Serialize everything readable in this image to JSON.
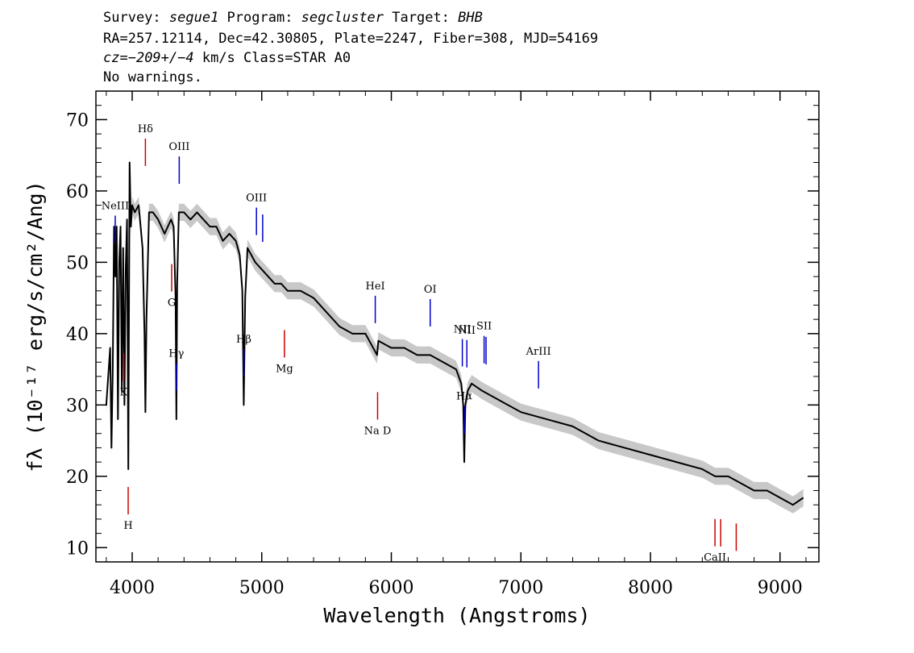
{
  "header": {
    "survey_label": "Survey: ",
    "survey": "segue1",
    "program_label": " Program: ",
    "program": "segcluster",
    "target_label": " Target: ",
    "target": "BHB",
    "line2": "RA=257.12114, Dec=42.30805, Plate=2247, Fiber=308, MJD=54169",
    "cz_prefix": "cz=",
    "cz_value": "−209+/−4",
    "cz_suffix": " km/s Class=STAR A0",
    "line4": "No warnings."
  },
  "chart_data": {
    "type": "line",
    "xlabel": "Wavelength (Angstroms)",
    "ylabel": "fλ (10⁻¹⁷ erg/s/cm²/Ang)",
    "xlim": [
      3720,
      9300
    ],
    "ylim": [
      8,
      74
    ],
    "x_ticks": [
      4000,
      5000,
      6000,
      7000,
      8000,
      9000
    ],
    "x_tick_labels": [
      "4000",
      "5000",
      "6000",
      "7000",
      "8000",
      "9000"
    ],
    "y_ticks": [
      10,
      20,
      30,
      40,
      50,
      60,
      70
    ],
    "y_tick_labels": [
      "10",
      "20",
      "30",
      "40",
      "50",
      "60",
      "70"
    ],
    "series": [
      {
        "color": "#000000",
        "x": [
          3800,
          3830,
          3840,
          3850,
          3860,
          3870,
          3880,
          3890,
          3900,
          3910,
          3920,
          3930,
          3940,
          3950,
          3960,
          3970,
          3980,
          3990,
          4000,
          4020,
          4050,
          4080,
          4095,
          4102,
          4110,
          4130,
          4160,
          4200,
          4250,
          4300,
          4320,
          4335,
          4341,
          4347,
          4360,
          4400,
          4450,
          4500,
          4550,
          4600,
          4650,
          4700,
          4750,
          4800,
          4830,
          4850,
          4861,
          4872,
          4890,
          4920,
          4950,
          5000,
          5050,
          5100,
          5150,
          5200,
          5300,
          5400,
          5500,
          5600,
          5700,
          5800,
          5890,
          5900,
          6000,
          6100,
          6200,
          6300,
          6400,
          6500,
          6540,
          6555,
          6563,
          6571,
          6590,
          6620,
          6700,
          6800,
          6900,
          7000,
          7200,
          7400,
          7600,
          7800,
          8000,
          8200,
          8400,
          8500,
          8600,
          8700,
          8800,
          8900,
          9000,
          9100,
          9180
        ],
        "y": [
          30,
          38,
          24,
          35,
          55,
          48,
          55,
          28,
          50,
          55,
          32,
          52,
          30,
          49,
          56,
          21,
          64,
          55,
          58,
          57,
          58,
          52,
          40,
          29,
          42,
          57,
          57,
          56,
          54,
          56,
          55,
          45,
          28,
          47,
          57,
          57,
          56,
          57,
          56,
          55,
          55,
          53,
          54,
          53,
          51,
          46,
          30,
          45,
          52,
          51,
          50,
          49,
          48,
          47,
          47,
          46,
          46,
          45,
          43,
          41,
          40,
          40,
          37,
          39,
          38,
          38,
          37,
          37,
          36,
          35,
          33,
          30,
          22,
          30,
          32,
          33,
          32,
          31,
          30,
          29,
          28,
          27,
          25,
          24,
          23,
          22,
          21,
          20,
          20,
          19,
          18,
          18,
          17,
          16,
          17
        ]
      }
    ],
    "error_band": {
      "color": "#c8c8c8",
      "half_width": 1.2
    },
    "line_markers": [
      {
        "label": "NeIII",
        "x": 3869,
        "color": "#0000cc"
      },
      {
        "label": "Hδ",
        "x": 4102,
        "color": "#cc0000"
      },
      {
        "label": "Hγ",
        "x": 4341,
        "color": "#0000cc"
      },
      {
        "label": "OIII",
        "x": 4363,
        "color": "#0000cc"
      },
      {
        "label": "Hβ",
        "x": 4861,
        "color": "#0000cc"
      },
      {
        "label": "OIII",
        "x": 4959,
        "color": "#0000cc"
      },
      {
        "label": "",
        "x": 5007,
        "color": "#0000cc"
      },
      {
        "label": "HeI",
        "x": 5876,
        "color": "#0000cc"
      },
      {
        "label": "OI",
        "x": 6300,
        "color": "#0000cc"
      },
      {
        "label": "NII",
        "x": 6548,
        "color": "#0000cc"
      },
      {
        "label": "Hα",
        "x": 6563,
        "color": "#0000cc"
      },
      {
        "label": "NII",
        "x": 6583,
        "color": "#0000cc"
      },
      {
        "label": "SII",
        "x": 6716,
        "color": "#0000cc"
      },
      {
        "label": "",
        "x": 6731,
        "color": "#0000cc"
      },
      {
        "label": "ArIII",
        "x": 7136,
        "color": "#0000cc"
      },
      {
        "label": "K",
        "x": 3934,
        "color": "#cc0000"
      },
      {
        "label": "H",
        "x": 3969,
        "color": "#cc0000"
      },
      {
        "label": "G",
        "x": 4305,
        "color": "#cc0000"
      },
      {
        "label": "Mg",
        "x": 5175,
        "color": "#cc0000"
      },
      {
        "label": "Na D",
        "x": 5894,
        "color": "#cc0000"
      },
      {
        "label": "CaII",
        "x": 8498,
        "color": "#cc0000"
      },
      {
        "label": "",
        "x": 8542,
        "color": "#cc0000"
      },
      {
        "label": "",
        "x": 8662,
        "color": "#cc0000"
      }
    ]
  }
}
